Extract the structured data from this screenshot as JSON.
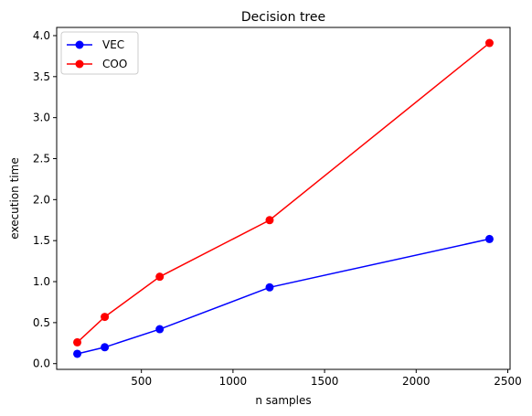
{
  "chart_data": {
    "type": "line",
    "title": "Decision tree",
    "xlabel": "n samples",
    "ylabel": "execution time",
    "x": [
      150,
      300,
      600,
      1200,
      2400
    ],
    "series": [
      {
        "name": "VEC",
        "color": "#0000ff",
        "values": [
          0.12,
          0.2,
          0.42,
          0.93,
          1.52
        ]
      },
      {
        "name": "COO",
        "color": "#ff0000",
        "values": [
          0.26,
          0.57,
          1.06,
          1.75,
          3.91
        ]
      }
    ],
    "xlim": [
      37.5,
      2512.5
    ],
    "ylim": [
      -0.07,
      4.1
    ],
    "xticks": [
      {
        "value": 500,
        "label": "500"
      },
      {
        "value": 1000,
        "label": "1000"
      },
      {
        "value": 1500,
        "label": "1500"
      },
      {
        "value": 2000,
        "label": "2000"
      },
      {
        "value": 2500,
        "label": "2500"
      }
    ],
    "yticks": [
      {
        "value": 0.0,
        "label": "0.0"
      },
      {
        "value": 0.5,
        "label": "0.5"
      },
      {
        "value": 1.0,
        "label": "1.0"
      },
      {
        "value": 1.5,
        "label": "1.5"
      },
      {
        "value": 2.0,
        "label": "2.0"
      },
      {
        "value": 2.5,
        "label": "2.5"
      },
      {
        "value": 3.0,
        "label": "3.0"
      },
      {
        "value": 3.5,
        "label": "3.5"
      },
      {
        "value": 4.0,
        "label": "4.0"
      }
    ],
    "grid": false,
    "legend_position": "top-left"
  }
}
